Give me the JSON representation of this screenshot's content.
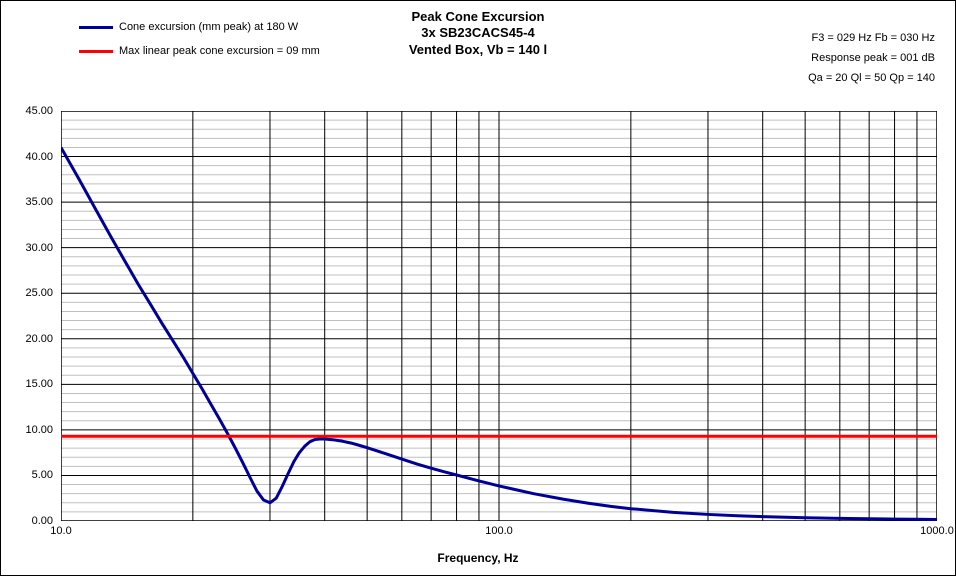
{
  "chart": {
    "type": "line",
    "title_line1": "Peak Cone Excursion",
    "title_line2": "3x SB23CACS45-4",
    "title_line3": "Vented Box, Vb = 140 l",
    "title_fontsize": 13,
    "xlabel": "Frequency, Hz",
    "label_fontsize": 12,
    "background_color": "#ffffff",
    "plot_border_color": "#000000",
    "major_grid_color": "#000000",
    "minor_grid_color": "#c0c0c0",
    "x_scale": "log",
    "xlim": [
      10,
      1000
    ],
    "x_major_ticks": [
      10,
      100,
      1000
    ],
    "x_major_labels": [
      "10.0",
      "100.0",
      "1000.0"
    ],
    "x_minor_ticks": [
      20,
      30,
      40,
      50,
      60,
      70,
      80,
      90,
      200,
      300,
      400,
      500,
      600,
      700,
      800,
      900
    ],
    "y_scale": "linear",
    "ylim": [
      0,
      45
    ],
    "y_major_step": 5,
    "y_major_labels": [
      "0.00",
      "5.00",
      "10.00",
      "15.00",
      "20.00",
      "25.00",
      "30.00",
      "35.00",
      "40.00",
      "45.00"
    ],
    "y_minor_step": 1,
    "legend": {
      "items": [
        {
          "label": "Cone excursion (mm peak) at 180 W",
          "color": "#000099",
          "width": 3
        },
        {
          "label": "Max linear peak cone excursion = 09 mm",
          "color": "#ff0000",
          "width": 3
        }
      ]
    },
    "info_lines": [
      "F3 = 029 Hz  Fb = 030 Hz",
      "Response peak = 001 dB",
      "Qa = 20  Ql = 50  Qp = 140"
    ],
    "series": [
      {
        "name": "cone-excursion",
        "color": "#000099",
        "width": 3,
        "points": [
          [
            10,
            41.0
          ],
          [
            11,
            37.5
          ],
          [
            12,
            34.2
          ],
          [
            13,
            31.2
          ],
          [
            14,
            28.5
          ],
          [
            15,
            26.0
          ],
          [
            16,
            23.8
          ],
          [
            17,
            21.7
          ],
          [
            18,
            19.8
          ],
          [
            19,
            18.0
          ],
          [
            20,
            16.2
          ],
          [
            21,
            14.5
          ],
          [
            22,
            12.8
          ],
          [
            23,
            11.2
          ],
          [
            24,
            9.6
          ],
          [
            25,
            8.0
          ],
          [
            26,
            6.4
          ],
          [
            27,
            4.8
          ],
          [
            28,
            3.3
          ],
          [
            29,
            2.3
          ],
          [
            30,
            2.0
          ],
          [
            31,
            2.5
          ],
          [
            32,
            3.8
          ],
          [
            33,
            5.2
          ],
          [
            34,
            6.5
          ],
          [
            35,
            7.5
          ],
          [
            36,
            8.2
          ],
          [
            37,
            8.7
          ],
          [
            38,
            8.95
          ],
          [
            39,
            9.0
          ],
          [
            40,
            9.0
          ],
          [
            42,
            8.9
          ],
          [
            44,
            8.75
          ],
          [
            46,
            8.55
          ],
          [
            48,
            8.3
          ],
          [
            50,
            8.05
          ],
          [
            55,
            7.4
          ],
          [
            60,
            6.8
          ],
          [
            65,
            6.25
          ],
          [
            70,
            5.8
          ],
          [
            75,
            5.4
          ],
          [
            80,
            5.05
          ],
          [
            90,
            4.4
          ],
          [
            100,
            3.85
          ],
          [
            110,
            3.4
          ],
          [
            120,
            3.0
          ],
          [
            140,
            2.4
          ],
          [
            160,
            1.95
          ],
          [
            180,
            1.6
          ],
          [
            200,
            1.35
          ],
          [
            250,
            0.95
          ],
          [
            300,
            0.72
          ],
          [
            350,
            0.58
          ],
          [
            400,
            0.48
          ],
          [
            500,
            0.36
          ],
          [
            600,
            0.29
          ],
          [
            700,
            0.24
          ],
          [
            800,
            0.21
          ],
          [
            900,
            0.19
          ],
          [
            1000,
            0.17
          ]
        ]
      },
      {
        "name": "max-linear",
        "color": "#ff0000",
        "width": 3,
        "constant_y": 9.3
      }
    ]
  }
}
